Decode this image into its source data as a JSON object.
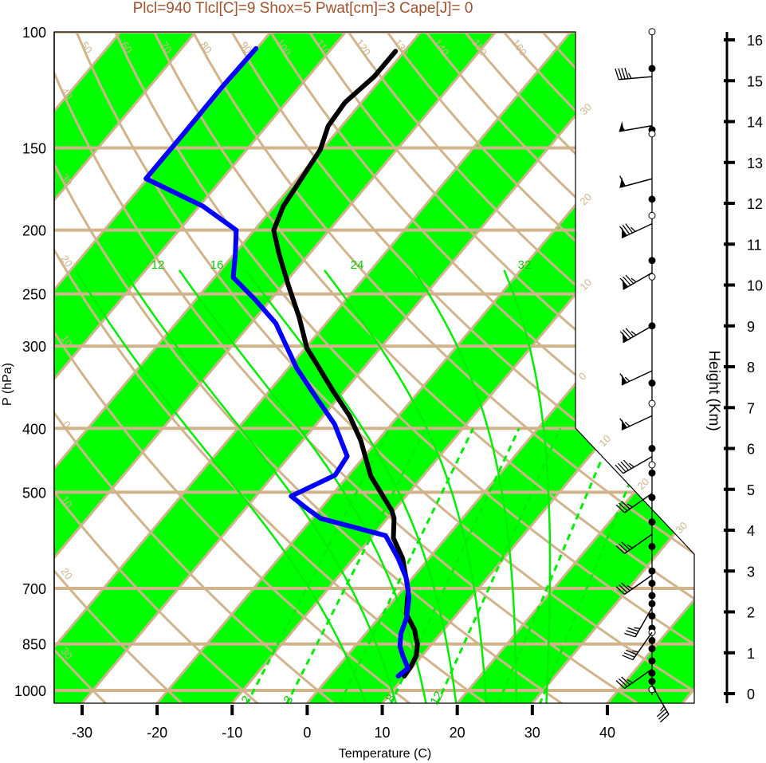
{
  "chart_data": {
    "type": "line",
    "subtype": "skew-t log-p sounding",
    "title": "Plcl=940 Tlcl[C]=9 Shox=5 Pwat[cm]=3 Cape[J]= 0",
    "xlabel": "Temperature (C)",
    "ylabel": "P (hPa)",
    "y2label": "Height (Km)",
    "pressure_ticks": [
      100,
      150,
      200,
      250,
      300,
      400,
      500,
      700,
      850,
      1000
    ],
    "temperature_ticks": [
      -30,
      -20,
      -10,
      0,
      10,
      20,
      30,
      40
    ],
    "height_ticks": [
      0,
      1,
      2,
      3,
      4,
      5,
      6,
      7,
      8,
      9,
      10,
      11,
      12,
      13,
      14,
      15,
      16
    ],
    "ylim_hpa": [
      1046,
      100
    ],
    "colors": {
      "temperature": "#000000",
      "dewpoint": "#0000ff",
      "band": "#00ff00",
      "grid": "#d2b48c",
      "moist": "#00ee00",
      "title": "#a0522d"
    },
    "series": [
      {
        "name": "temperature",
        "p": [
          107,
          117,
          128,
          139,
          151,
          164,
          184,
          200,
          217,
          243,
          271,
          302,
          324,
          351,
          383,
          417,
          473,
          533,
          548,
          587,
          630,
          704,
          765,
          809,
          851,
          885,
          918,
          951
        ],
        "T": [
          -61.2,
          -61.2,
          -62.2,
          -61.8,
          -60.2,
          -59.6,
          -58.8,
          -57.4,
          -54.1,
          -49.2,
          -44.3,
          -39.8,
          -35.9,
          -31.5,
          -26.5,
          -22.3,
          -16.9,
          -10.3,
          -9.1,
          -7.0,
          -3.5,
          0.8,
          3.2,
          6.1,
          8.1,
          9.2,
          9.7,
          9.9
        ]
      },
      {
        "name": "dewpoint",
        "p": [
          106,
          121,
          143,
          167,
          184,
          200,
          217,
          236,
          255,
          277,
          324,
          361,
          394,
          441,
          471,
          507,
          527,
          548,
          582,
          630,
          675,
          724,
          776,
          820,
          857,
          885,
          925,
          951
        ],
        "T": [
          -80.1,
          -80.3,
          -80.2,
          -80.2,
          -69.5,
          -62.4,
          -59.9,
          -57.5,
          -52.1,
          -46.7,
          -38.9,
          -32.7,
          -27.6,
          -22.3,
          -21.8,
          -25.3,
          -22.2,
          -18.9,
          -8.3,
          -4.1,
          -0.8,
          1.8,
          3.7,
          4.7,
          6.0,
          7.4,
          9.5,
          9.1
        ]
      }
    ],
    "dry_adiabat_labels": [
      "50",
      "60",
      "70",
      "80",
      "90",
      "100",
      "110",
      "120",
      "130",
      "140",
      "150",
      "160",
      "40",
      "30",
      "20",
      "10",
      "0",
      "10",
      "20",
      "30"
    ],
    "isotherm_labels": [
      "30",
      "20",
      "10",
      "0",
      "10",
      "20",
      "30"
    ],
    "moist_adiabat_labels": [
      "12",
      "16",
      "24",
      "32"
    ],
    "mixing_ratio_labels": [
      "2",
      "3",
      "8",
      "12"
    ],
    "winds": [
      {
        "height_km": 15.1,
        "dir": 265,
        "speed_kt": 45
      },
      {
        "height_km": 13.9,
        "dir": 260,
        "speed_kt": 55
      },
      {
        "height_km": 12.6,
        "dir": 255,
        "speed_kt": 60
      },
      {
        "height_km": 11.5,
        "dir": 245,
        "speed_kt": 85
      },
      {
        "height_km": 10.3,
        "dir": 240,
        "speed_kt": 85
      },
      {
        "height_km": 9.0,
        "dir": 240,
        "speed_kt": 85
      },
      {
        "height_km": 7.9,
        "dir": 245,
        "speed_kt": 65
      },
      {
        "height_km": 6.8,
        "dir": 245,
        "speed_kt": 65
      },
      {
        "height_km": 5.8,
        "dir": 240,
        "speed_kt": 45
      },
      {
        "height_km": 4.9,
        "dir": 235,
        "speed_kt": 35
      },
      {
        "height_km": 3.9,
        "dir": 235,
        "speed_kt": 35
      },
      {
        "height_km": 2.9,
        "dir": 235,
        "speed_kt": 35
      },
      {
        "height_km": 2.1,
        "dir": 210,
        "speed_kt": 35
      },
      {
        "height_km": 1.5,
        "dir": 215,
        "speed_kt": 35
      },
      {
        "height_km": 0.6,
        "dir": 235,
        "speed_kt": 35
      },
      {
        "height_km": 0.2,
        "dir": 150,
        "speed_kt": 35
      }
    ],
    "level_dots_km": [
      15.3,
      13.8,
      12.1,
      10.6,
      9.0,
      7.6,
      6.0,
      5.4,
      4.8,
      4.2,
      3.6,
      3.0,
      2.7,
      2.4,
      2.2,
      1.9,
      1.6,
      1.3,
      1.1,
      0.8,
      0.5,
      0.3,
      0.1
    ],
    "level_circles_km": [
      16.2,
      13.7,
      11.7,
      10.2,
      7.1,
      5.6,
      1.5,
      0.1
    ]
  }
}
